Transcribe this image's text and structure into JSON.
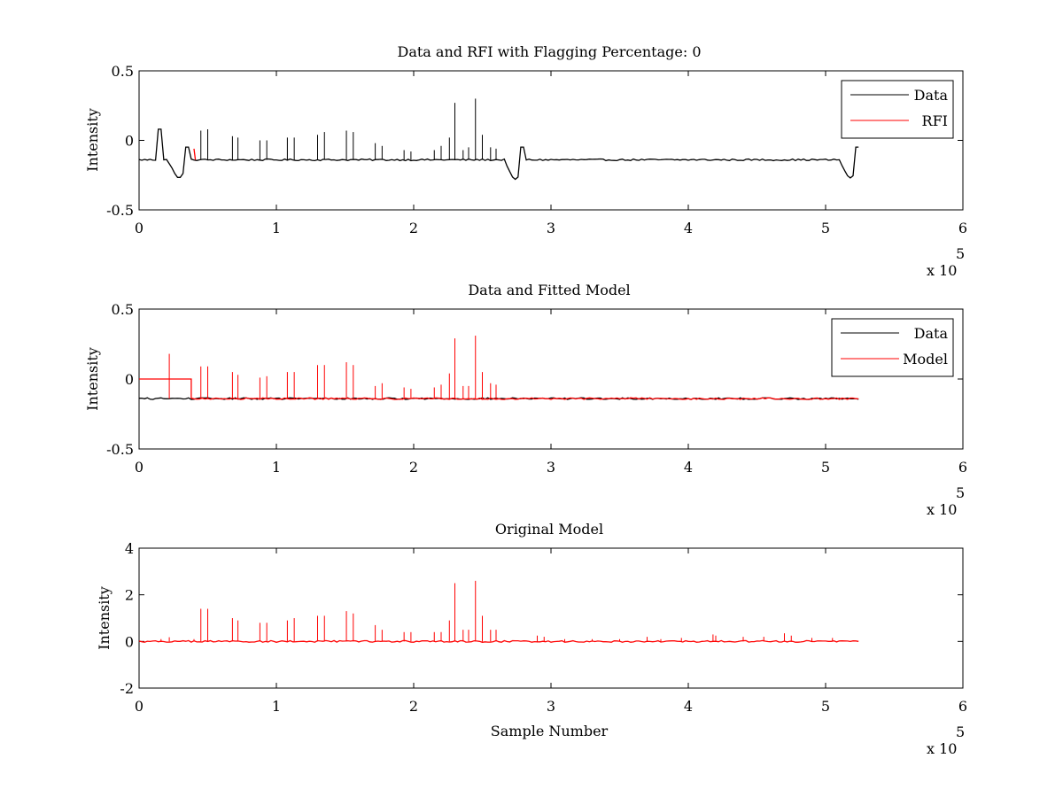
{
  "chart_data": [
    {
      "type": "line",
      "title": "Data and RFI with Flagging Percentage: 0",
      "xlabel": "",
      "ylabel": "Intensity",
      "xlim": [
        0,
        600000
      ],
      "ylim": [
        -0.5,
        0.5
      ],
      "xticks": [
        0,
        1,
        2,
        3,
        4,
        5,
        6
      ],
      "yticks": [
        "-0.5",
        "0",
        "0.5"
      ],
      "x_exponent_label": "x 10",
      "x_exponent": "5",
      "grid": false,
      "legend_position": "top-right",
      "series": [
        {
          "name": "Data",
          "color": "#000000",
          "baseline": -0.14,
          "end_x": 525000,
          "features": [
            {
              "kind": "step",
              "x0": 13000,
              "x1": 16000,
              "y": 0.08
            },
            {
              "kind": "dip",
              "x": 29000,
              "depth": -0.27,
              "width": 4000
            },
            {
              "kind": "bump",
              "x": 35000,
              "y": -0.01
            },
            {
              "kind": "dip",
              "x": 274000,
              "depth": -0.28,
              "width": 4000
            },
            {
              "kind": "bump",
              "x": 279000,
              "y": -0.01
            },
            {
              "kind": "dip",
              "x": 518000,
              "depth": -0.27,
              "width": 4000
            },
            {
              "kind": "bump",
              "x": 523000,
              "y": -0.01
            }
          ],
          "spikes": [
            [
              45000,
              0.07
            ],
            [
              50000,
              0.08
            ],
            [
              68000,
              0.03
            ],
            [
              72000,
              0.02
            ],
            [
              88000,
              0.0
            ],
            [
              93000,
              0.0
            ],
            [
              108000,
              0.02
            ],
            [
              113000,
              0.02
            ],
            [
              130000,
              0.04
            ],
            [
              135000,
              0.06
            ],
            [
              151000,
              0.07
            ],
            [
              156000,
              0.06
            ],
            [
              172000,
              -0.02
            ],
            [
              177000,
              -0.04
            ],
            [
              193000,
              -0.07
            ],
            [
              198000,
              -0.08
            ],
            [
              215000,
              -0.07
            ],
            [
              220000,
              -0.04
            ],
            [
              226000,
              0.02
            ],
            [
              230000,
              0.27
            ],
            [
              236000,
              -0.07
            ],
            [
              240000,
              -0.05
            ],
            [
              245000,
              0.3
            ],
            [
              250000,
              0.04
            ],
            [
              256000,
              -0.05
            ],
            [
              260000,
              -0.06
            ]
          ]
        },
        {
          "name": "RFI",
          "color": "#ff0000",
          "points": [
            [
              40000,
              -0.06
            ],
            [
              41000,
              -0.14
            ]
          ]
        }
      ]
    },
    {
      "type": "line",
      "title": "Data and Fitted Model",
      "xlabel": "",
      "ylabel": "Intensity",
      "xlim": [
        0,
        600000
      ],
      "ylim": [
        -0.5,
        0.5
      ],
      "xticks": [
        0,
        1,
        2,
        3,
        4,
        5,
        6
      ],
      "yticks": [
        "-0.5",
        "0",
        "0.5"
      ],
      "x_exponent_label": "x 10",
      "x_exponent": "5",
      "grid": false,
      "legend_position": "top-right",
      "series": [
        {
          "name": "Data",
          "color": "#000000",
          "baseline": -0.14,
          "end_x": 525000
        },
        {
          "name": "Model",
          "color": "#ff0000",
          "offset_segment": {
            "x0": 0,
            "x1": 38000,
            "y": 0.0
          },
          "baseline": -0.14,
          "end_x": 525000,
          "spikes": [
            [
              22000,
              0.18
            ],
            [
              45000,
              0.09
            ],
            [
              50000,
              0.09
            ],
            [
              68000,
              0.05
            ],
            [
              72000,
              0.03
            ],
            [
              88000,
              0.01
            ],
            [
              93000,
              0.02
            ],
            [
              108000,
              0.05
            ],
            [
              113000,
              0.05
            ],
            [
              130000,
              0.1
            ],
            [
              135000,
              0.1
            ],
            [
              151000,
              0.12
            ],
            [
              156000,
              0.1
            ],
            [
              172000,
              -0.05
            ],
            [
              177000,
              -0.03
            ],
            [
              193000,
              -0.06
            ],
            [
              198000,
              -0.07
            ],
            [
              215000,
              -0.06
            ],
            [
              220000,
              -0.04
            ],
            [
              226000,
              0.04
            ],
            [
              230000,
              0.29
            ],
            [
              236000,
              -0.05
            ],
            [
              240000,
              -0.05
            ],
            [
              245000,
              0.31
            ],
            [
              250000,
              0.05
            ],
            [
              256000,
              -0.03
            ],
            [
              260000,
              -0.04
            ]
          ]
        }
      ]
    },
    {
      "type": "line",
      "title": "Original Model",
      "xlabel": "Sample Number",
      "ylabel": "Intensity",
      "xlim": [
        0,
        600000
      ],
      "ylim": [
        -2,
        4
      ],
      "xticks": [
        0,
        1,
        2,
        3,
        4,
        5,
        6
      ],
      "yticks": [
        "-2",
        "0",
        "2",
        "4"
      ],
      "x_exponent_label": "x 10",
      "x_exponent": "5",
      "grid": false,
      "series": [
        {
          "name": "",
          "color": "#ff0000",
          "baseline": 0.0,
          "end_x": 525000,
          "spikes": [
            [
              16000,
              0.1
            ],
            [
              22000,
              0.18
            ],
            [
              40000,
              0.1
            ],
            [
              45000,
              1.4
            ],
            [
              50000,
              1.4
            ],
            [
              68000,
              1.0
            ],
            [
              72000,
              0.9
            ],
            [
              88000,
              0.8
            ],
            [
              93000,
              0.8
            ],
            [
              108000,
              0.9
            ],
            [
              113000,
              1.0
            ],
            [
              130000,
              1.1
            ],
            [
              135000,
              1.1
            ],
            [
              151000,
              1.3
            ],
            [
              156000,
              1.2
            ],
            [
              172000,
              0.7
            ],
            [
              177000,
              0.5
            ],
            [
              193000,
              0.4
            ],
            [
              198000,
              0.4
            ],
            [
              215000,
              0.4
            ],
            [
              220000,
              0.4
            ],
            [
              226000,
              0.9
            ],
            [
              230000,
              2.5
            ],
            [
              236000,
              0.5
            ],
            [
              240000,
              0.5
            ],
            [
              245000,
              2.6
            ],
            [
              250000,
              1.1
            ],
            [
              256000,
              0.5
            ],
            [
              260000,
              0.5
            ],
            [
              290000,
              0.25
            ],
            [
              295000,
              0.2
            ],
            [
              310000,
              0.1
            ],
            [
              330000,
              0.1
            ],
            [
              350000,
              0.1
            ],
            [
              370000,
              0.2
            ],
            [
              380000,
              0.1
            ],
            [
              395000,
              0.15
            ],
            [
              418000,
              0.3
            ],
            [
              420000,
              0.25
            ],
            [
              440000,
              0.2
            ],
            [
              455000,
              0.2
            ],
            [
              470000,
              0.35
            ],
            [
              475000,
              0.25
            ],
            [
              490000,
              0.15
            ],
            [
              505000,
              0.15
            ]
          ]
        }
      ]
    }
  ]
}
